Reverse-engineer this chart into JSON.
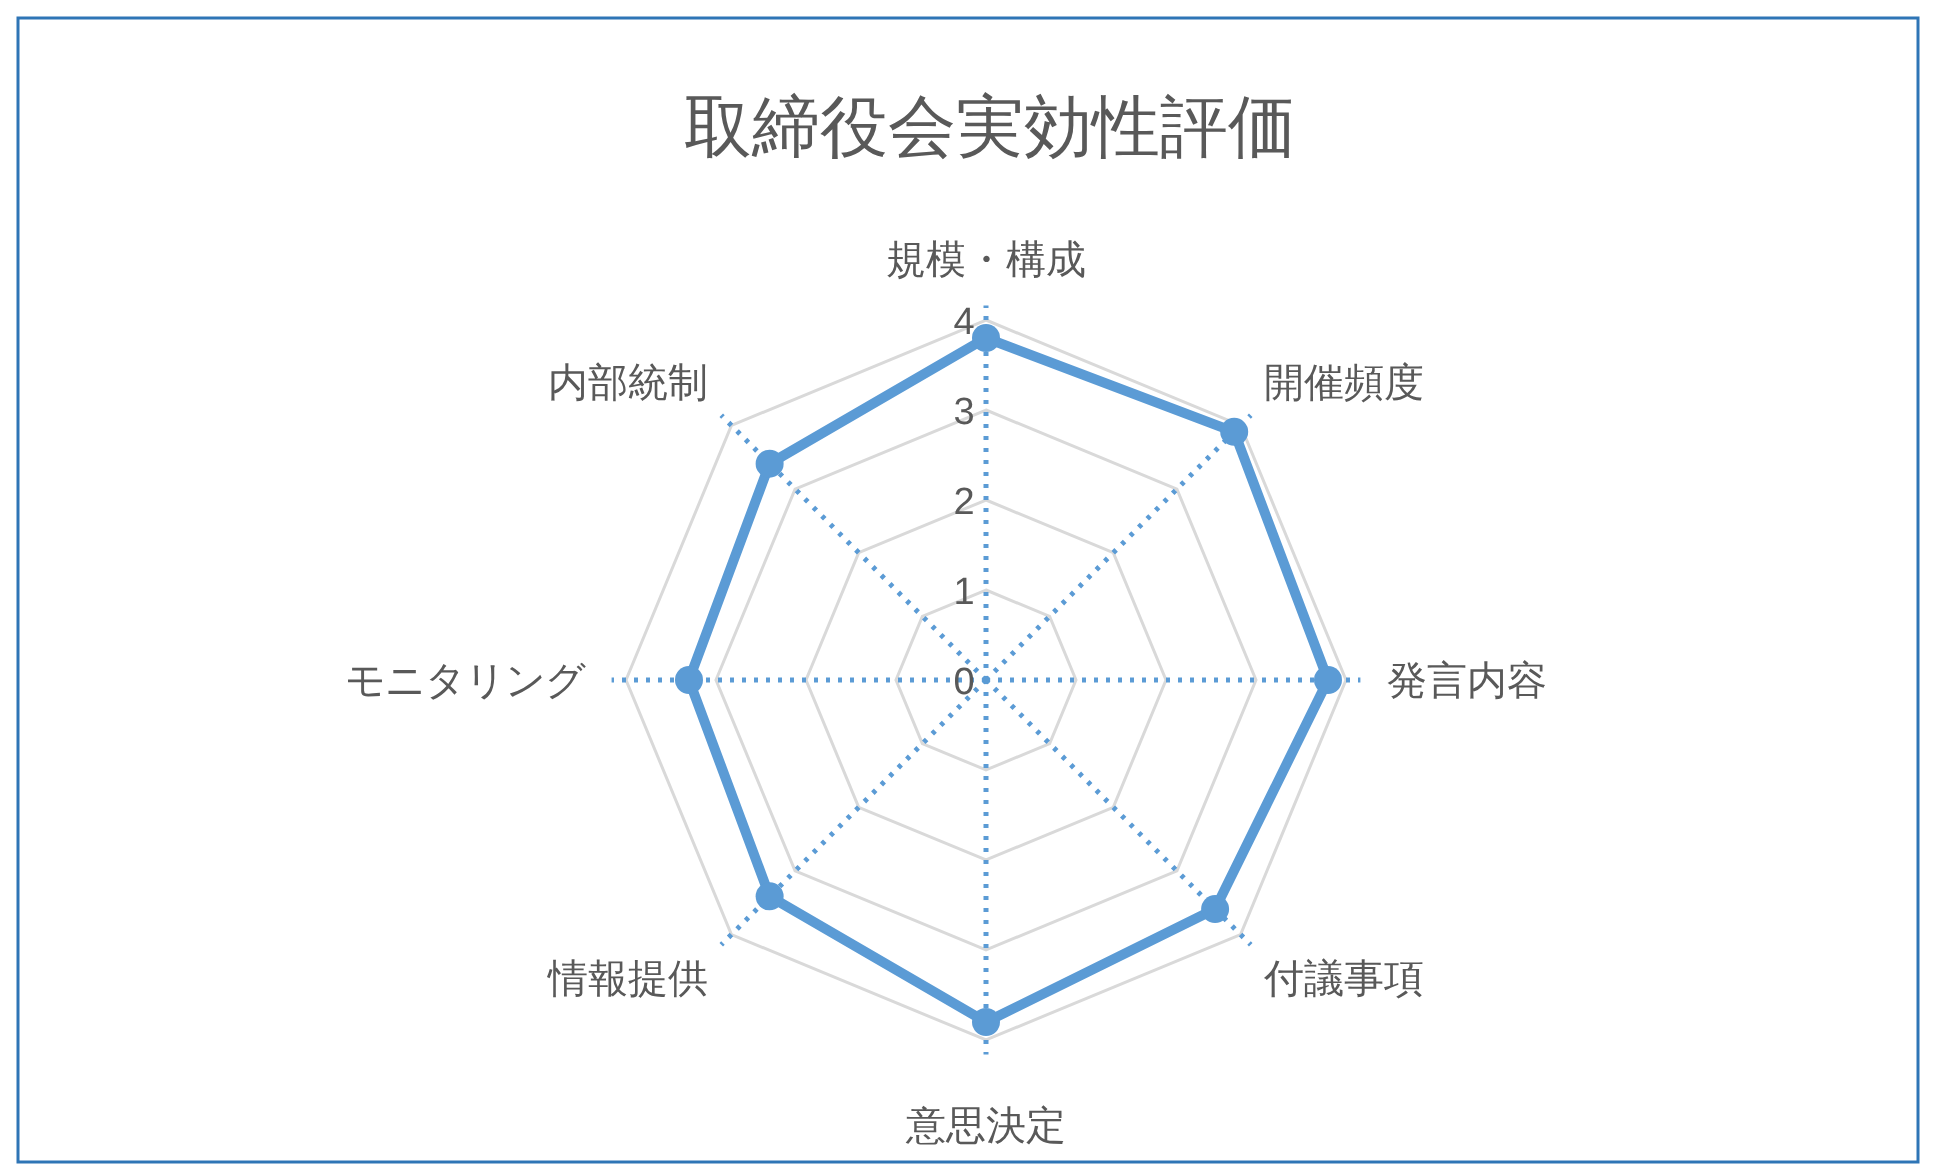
{
  "chart_data": {
    "type": "radar",
    "title": "取締役会実効性評価",
    "categories": [
      "規模・構成",
      "開催頻度",
      "発言内容",
      "付議事項",
      "意思決定",
      "情報提供",
      "モニタリング",
      "内部統制"
    ],
    "series": [
      {
        "color": "#5b9bd5",
        "values": [
          3.8,
          3.9,
          3.8,
          3.6,
          3.8,
          3.4,
          3.3,
          3.4
        ]
      }
    ],
    "ylim": [
      0,
      4
    ],
    "yticks": [
      0,
      1,
      2,
      3,
      4
    ],
    "grid": true,
    "marker": "circle"
  }
}
